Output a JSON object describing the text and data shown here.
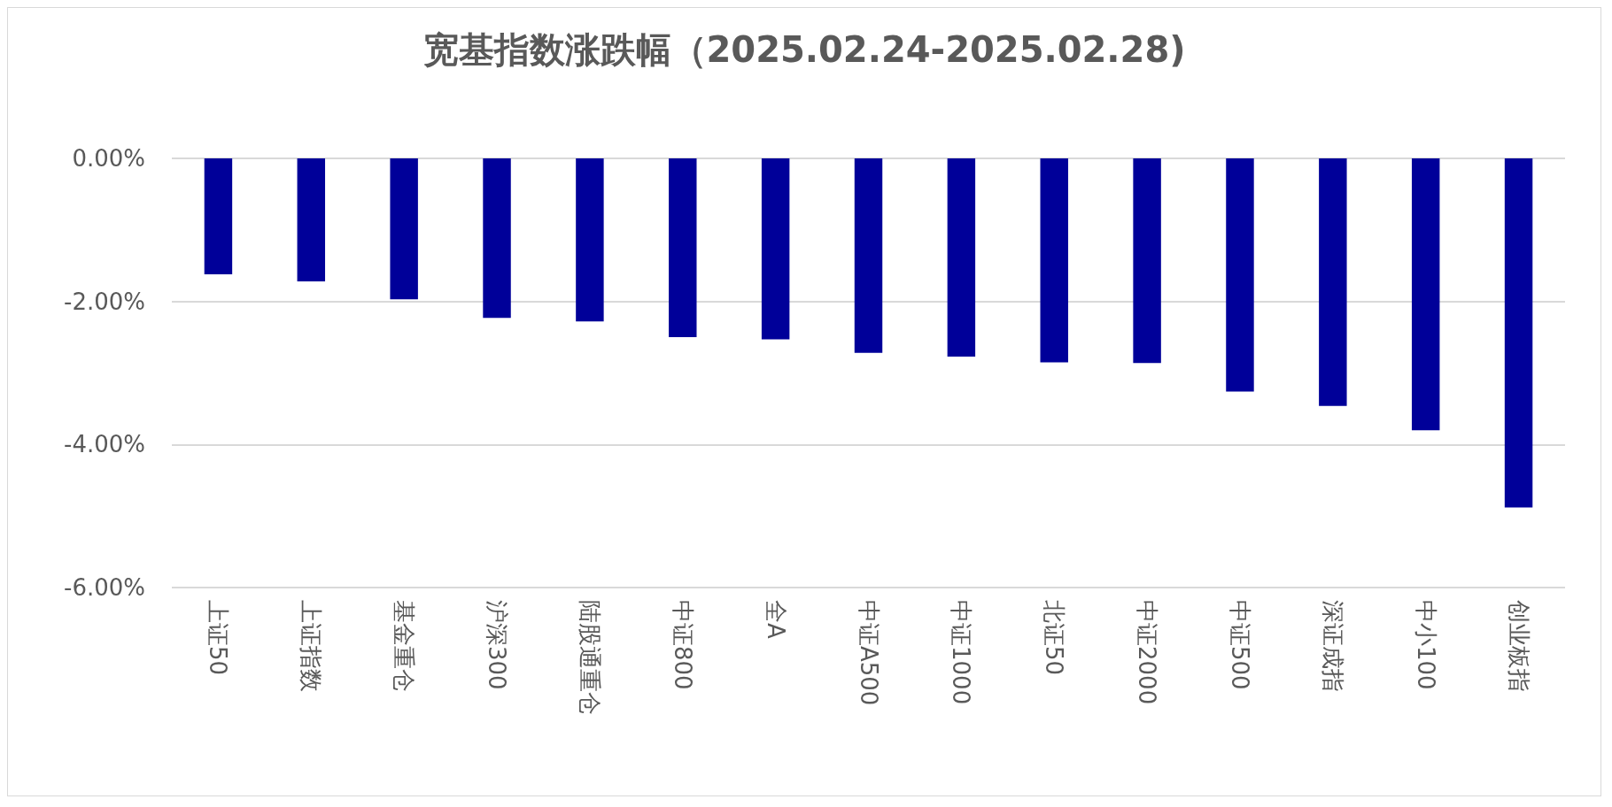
{
  "chart_data": {
    "type": "bar",
    "title": "宽基指数涨跌幅（2025.02.24-2025.02.28)",
    "categories": [
      "上证50",
      "上证指数",
      "基金重仓",
      "沪深300",
      "陆股通重仓",
      "中证800",
      "全A",
      "中证A500",
      "中证1000",
      "北证50",
      "中证2000",
      "中证500",
      "深证成指",
      "中小100",
      "创业板指"
    ],
    "values": [
      -1.62,
      -1.72,
      -1.97,
      -2.23,
      -2.28,
      -2.5,
      -2.53,
      -2.72,
      -2.77,
      -2.85,
      -2.86,
      -3.26,
      -3.46,
      -3.8,
      -4.88
    ],
    "color": "#000099",
    "ylim": [
      -6,
      0
    ],
    "yticks": [
      {
        "value": -6,
        "label": "-6.00%"
      },
      {
        "value": -4,
        "label": "-4.00%"
      },
      {
        "value": -2,
        "label": "-2.00%"
      },
      {
        "value": 0,
        "label": "0.00%"
      }
    ],
    "grid": "y"
  }
}
